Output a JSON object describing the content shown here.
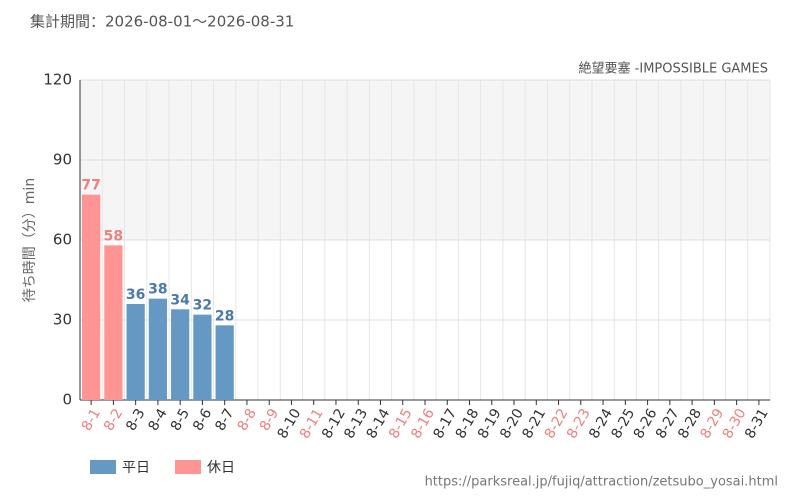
{
  "chart_data": {
    "type": "bar",
    "title": "絶望要塞 -IMPOSSIBLE GAMES",
    "subtitle": "集計期間：2026-08-01〜2026-08-31",
    "y_label": "待ち時間（分）min",
    "source": "https://parksreal.jp/fujiq/attraction/zetsubo_yosai.html",
    "categories": [
      "8-1",
      "8-2",
      "8-3",
      "8-4",
      "8-5",
      "8-6",
      "8-7",
      "8-8",
      "8-9",
      "8-10",
      "8-11",
      "8-12",
      "8-13",
      "8-14",
      "8-15",
      "8-16",
      "8-17",
      "8-18",
      "8-19",
      "8-20",
      "8-21",
      "8-22",
      "8-23",
      "8-24",
      "8-25",
      "8-26",
      "8-27",
      "8-28",
      "8-29",
      "8-30",
      "8-31"
    ],
    "category_colors": [
      "#f08080",
      "#f08080",
      "#333333",
      "#333333",
      "#333333",
      "#333333",
      "#333333",
      "#f08080",
      "#f08080",
      "#333333",
      "#f08080",
      "#333333",
      "#333333",
      "#333333",
      "#f08080",
      "#f08080",
      "#333333",
      "#333333",
      "#333333",
      "#333333",
      "#333333",
      "#f08080",
      "#f08080",
      "#333333",
      "#333333",
      "#333333",
      "#333333",
      "#333333",
      "#f08080",
      "#f08080",
      "#333333"
    ],
    "series": [
      {
        "name": "平日",
        "color": "#6599c4",
        "label_color": "#4a7aab",
        "values": [
          null,
          null,
          36,
          38,
          34,
          32,
          28,
          null,
          null,
          null,
          null,
          null,
          null,
          null,
          null,
          null,
          null,
          null,
          null,
          null,
          null,
          null,
          null,
          null,
          null,
          null,
          null,
          null,
          null,
          null,
          null
        ]
      },
      {
        "name": "休日",
        "color": "#ff9494",
        "label_color": "#f08080",
        "values": [
          77,
          58,
          null,
          null,
          null,
          null,
          null,
          null,
          null,
          null,
          null,
          null,
          null,
          null,
          null,
          null,
          null,
          null,
          null,
          null,
          null,
          null,
          null,
          null,
          null,
          null,
          null,
          null,
          null,
          null,
          null
        ]
      }
    ],
    "ylim": [
      0,
      120
    ],
    "yticks": [
      0,
      30,
      60,
      90,
      120
    ],
    "grid": true,
    "legend": "bottom-left"
  }
}
